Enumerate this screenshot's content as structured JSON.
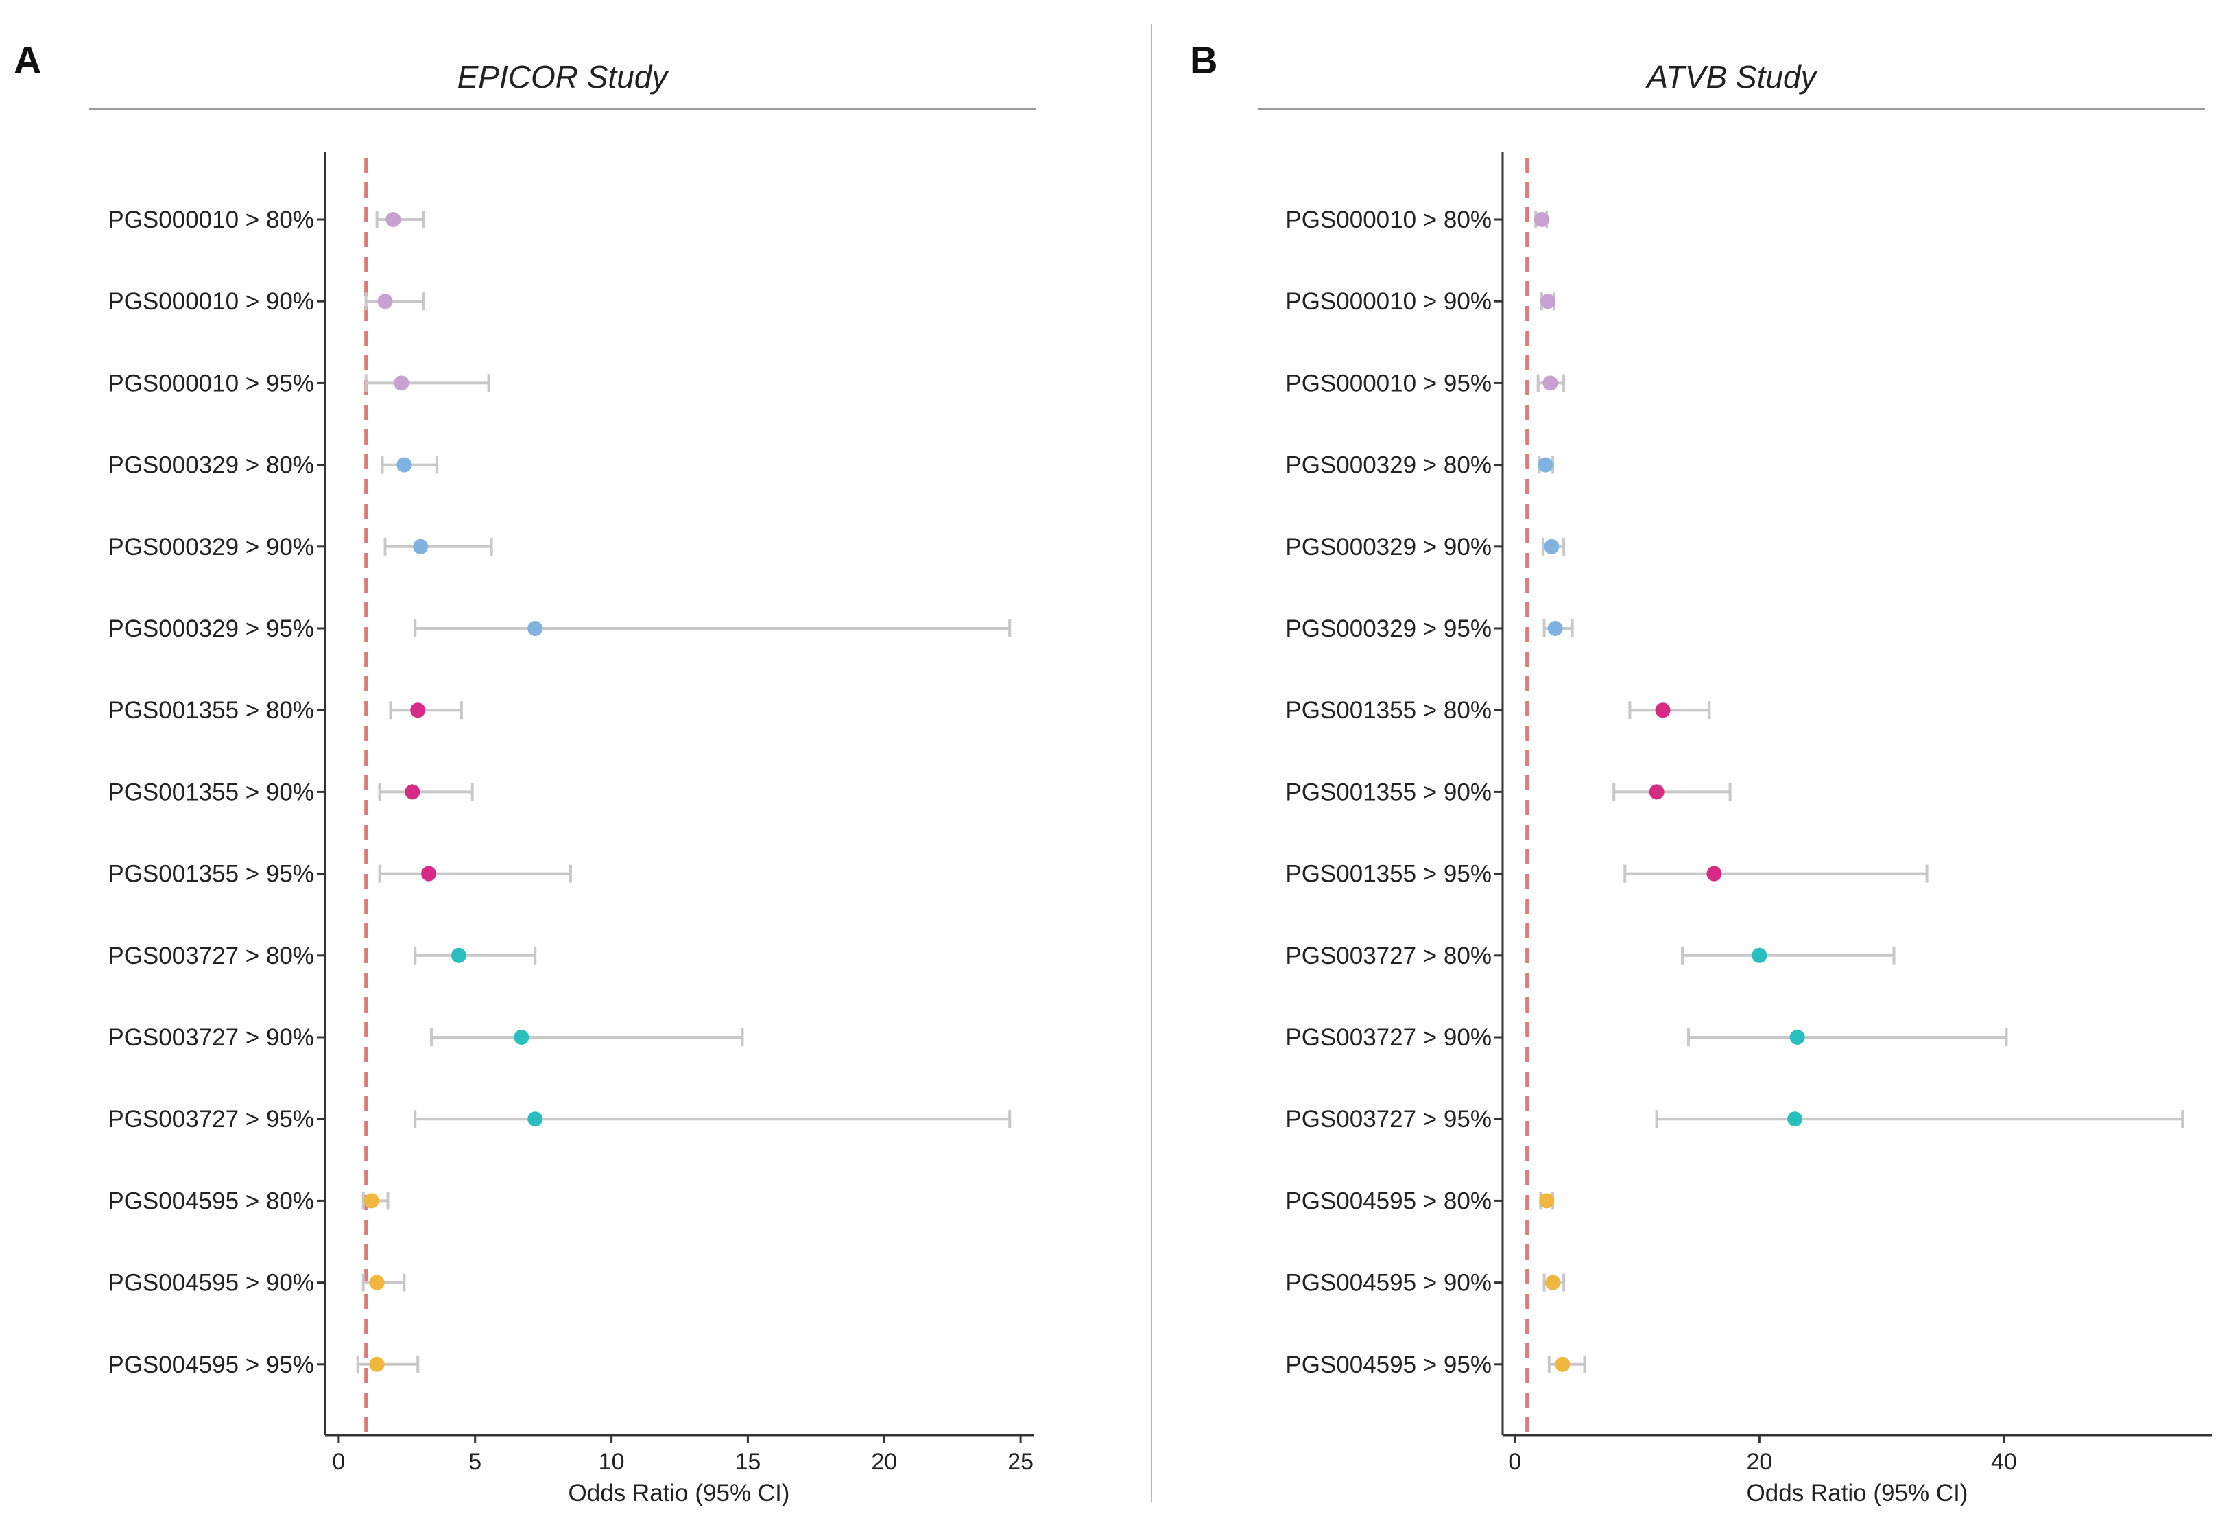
{
  "chart_data": [
    {
      "type": "scatter",
      "panel_label": "A",
      "title": "EPICOR Study",
      "xlabel": "Odds Ratio (95% CI)",
      "ylabel": "",
      "xlim": [
        -0.5,
        25.5
      ],
      "xticks": [
        "0",
        "5",
        "10",
        "15",
        "20",
        "25"
      ],
      "reference_line": 1,
      "categories": [
        "PGS000010 > 80%",
        "PGS000010 > 90%",
        "PGS000010 > 95%",
        "PGS000329 > 80%",
        "PGS000329 > 90%",
        "PGS000329 > 95%",
        "PGS001355 > 80%",
        "PGS001355 > 90%",
        "PGS001355 > 95%",
        "PGS003727 > 80%",
        "PGS003727 > 90%",
        "PGS003727 > 95%",
        "PGS004595 > 80%",
        "PGS004595 > 90%",
        "PGS004595 > 95%"
      ],
      "or": [
        2.0,
        1.7,
        2.3,
        2.4,
        3.0,
        7.2,
        2.9,
        2.7,
        3.3,
        4.4,
        6.7,
        7.2,
        1.2,
        1.4,
        1.4
      ],
      "lower": [
        1.4,
        1.0,
        1.0,
        1.6,
        1.7,
        2.8,
        1.9,
        1.5,
        1.5,
        2.8,
        3.4,
        2.8,
        0.9,
        0.9,
        0.7
      ],
      "upper": [
        3.1,
        3.1,
        5.5,
        3.6,
        5.6,
        24.6,
        4.5,
        4.9,
        8.5,
        7.2,
        14.8,
        24.6,
        1.8,
        2.4,
        2.9
      ],
      "point_colors": [
        "#c9a0d2",
        "#c9a0d2",
        "#c9a0d2",
        "#7fb2e0",
        "#7fb2e0",
        "#7fb2e0",
        "#d62a86",
        "#d62a86",
        "#d62a86",
        "#29bfbf",
        "#29bfbf",
        "#29bfbf",
        "#f0b63d",
        "#f0b63d",
        "#f0b63d"
      ]
    },
    {
      "type": "scatter",
      "panel_label": "B",
      "title": "ATVB Study",
      "xlabel": "Odds Ratio (95% CI)",
      "ylabel": "",
      "xlim": [
        -1,
        57
      ],
      "xticks": [
        "0",
        "20",
        "40"
      ],
      "reference_line": 1,
      "categories": [
        "PGS000010 > 80%",
        "PGS000010 > 90%",
        "PGS000010 > 95%",
        "PGS000329 > 80%",
        "PGS000329 > 90%",
        "PGS000329 > 95%",
        "PGS001355 > 80%",
        "PGS001355 > 90%",
        "PGS001355 > 95%",
        "PGS003727 > 80%",
        "PGS003727 > 90%",
        "PGS003727 > 95%",
        "PGS004595 > 80%",
        "PGS004595 > 90%",
        "PGS004595 > 95%"
      ],
      "or": [
        2.2,
        2.7,
        2.9,
        2.5,
        3.0,
        3.3,
        12.1,
        11.6,
        16.3,
        20.0,
        23.1,
        22.9,
        2.6,
        3.1,
        3.9
      ],
      "lower": [
        1.7,
        2.2,
        1.9,
        2.0,
        2.3,
        2.4,
        9.4,
        8.1,
        9.0,
        13.7,
        14.2,
        11.6,
        2.1,
        2.4,
        2.8
      ],
      "upper": [
        2.6,
        3.2,
        4.0,
        3.1,
        4.0,
        4.7,
        15.9,
        17.6,
        33.7,
        31.0,
        40.2,
        54.6,
        3.1,
        4.0,
        5.7
      ],
      "point_colors": [
        "#c9a0d2",
        "#c9a0d2",
        "#c9a0d2",
        "#7fb2e0",
        "#7fb2e0",
        "#7fb2e0",
        "#d62a86",
        "#d62a86",
        "#d62a86",
        "#29bfbf",
        "#29bfbf",
        "#29bfbf",
        "#f0b63d",
        "#f0b63d",
        "#f0b63d"
      ]
    }
  ],
  "colors": {
    "reference_line": "#e07a7a",
    "ci_line": "#c8c8c8",
    "axis": "#333333"
  }
}
